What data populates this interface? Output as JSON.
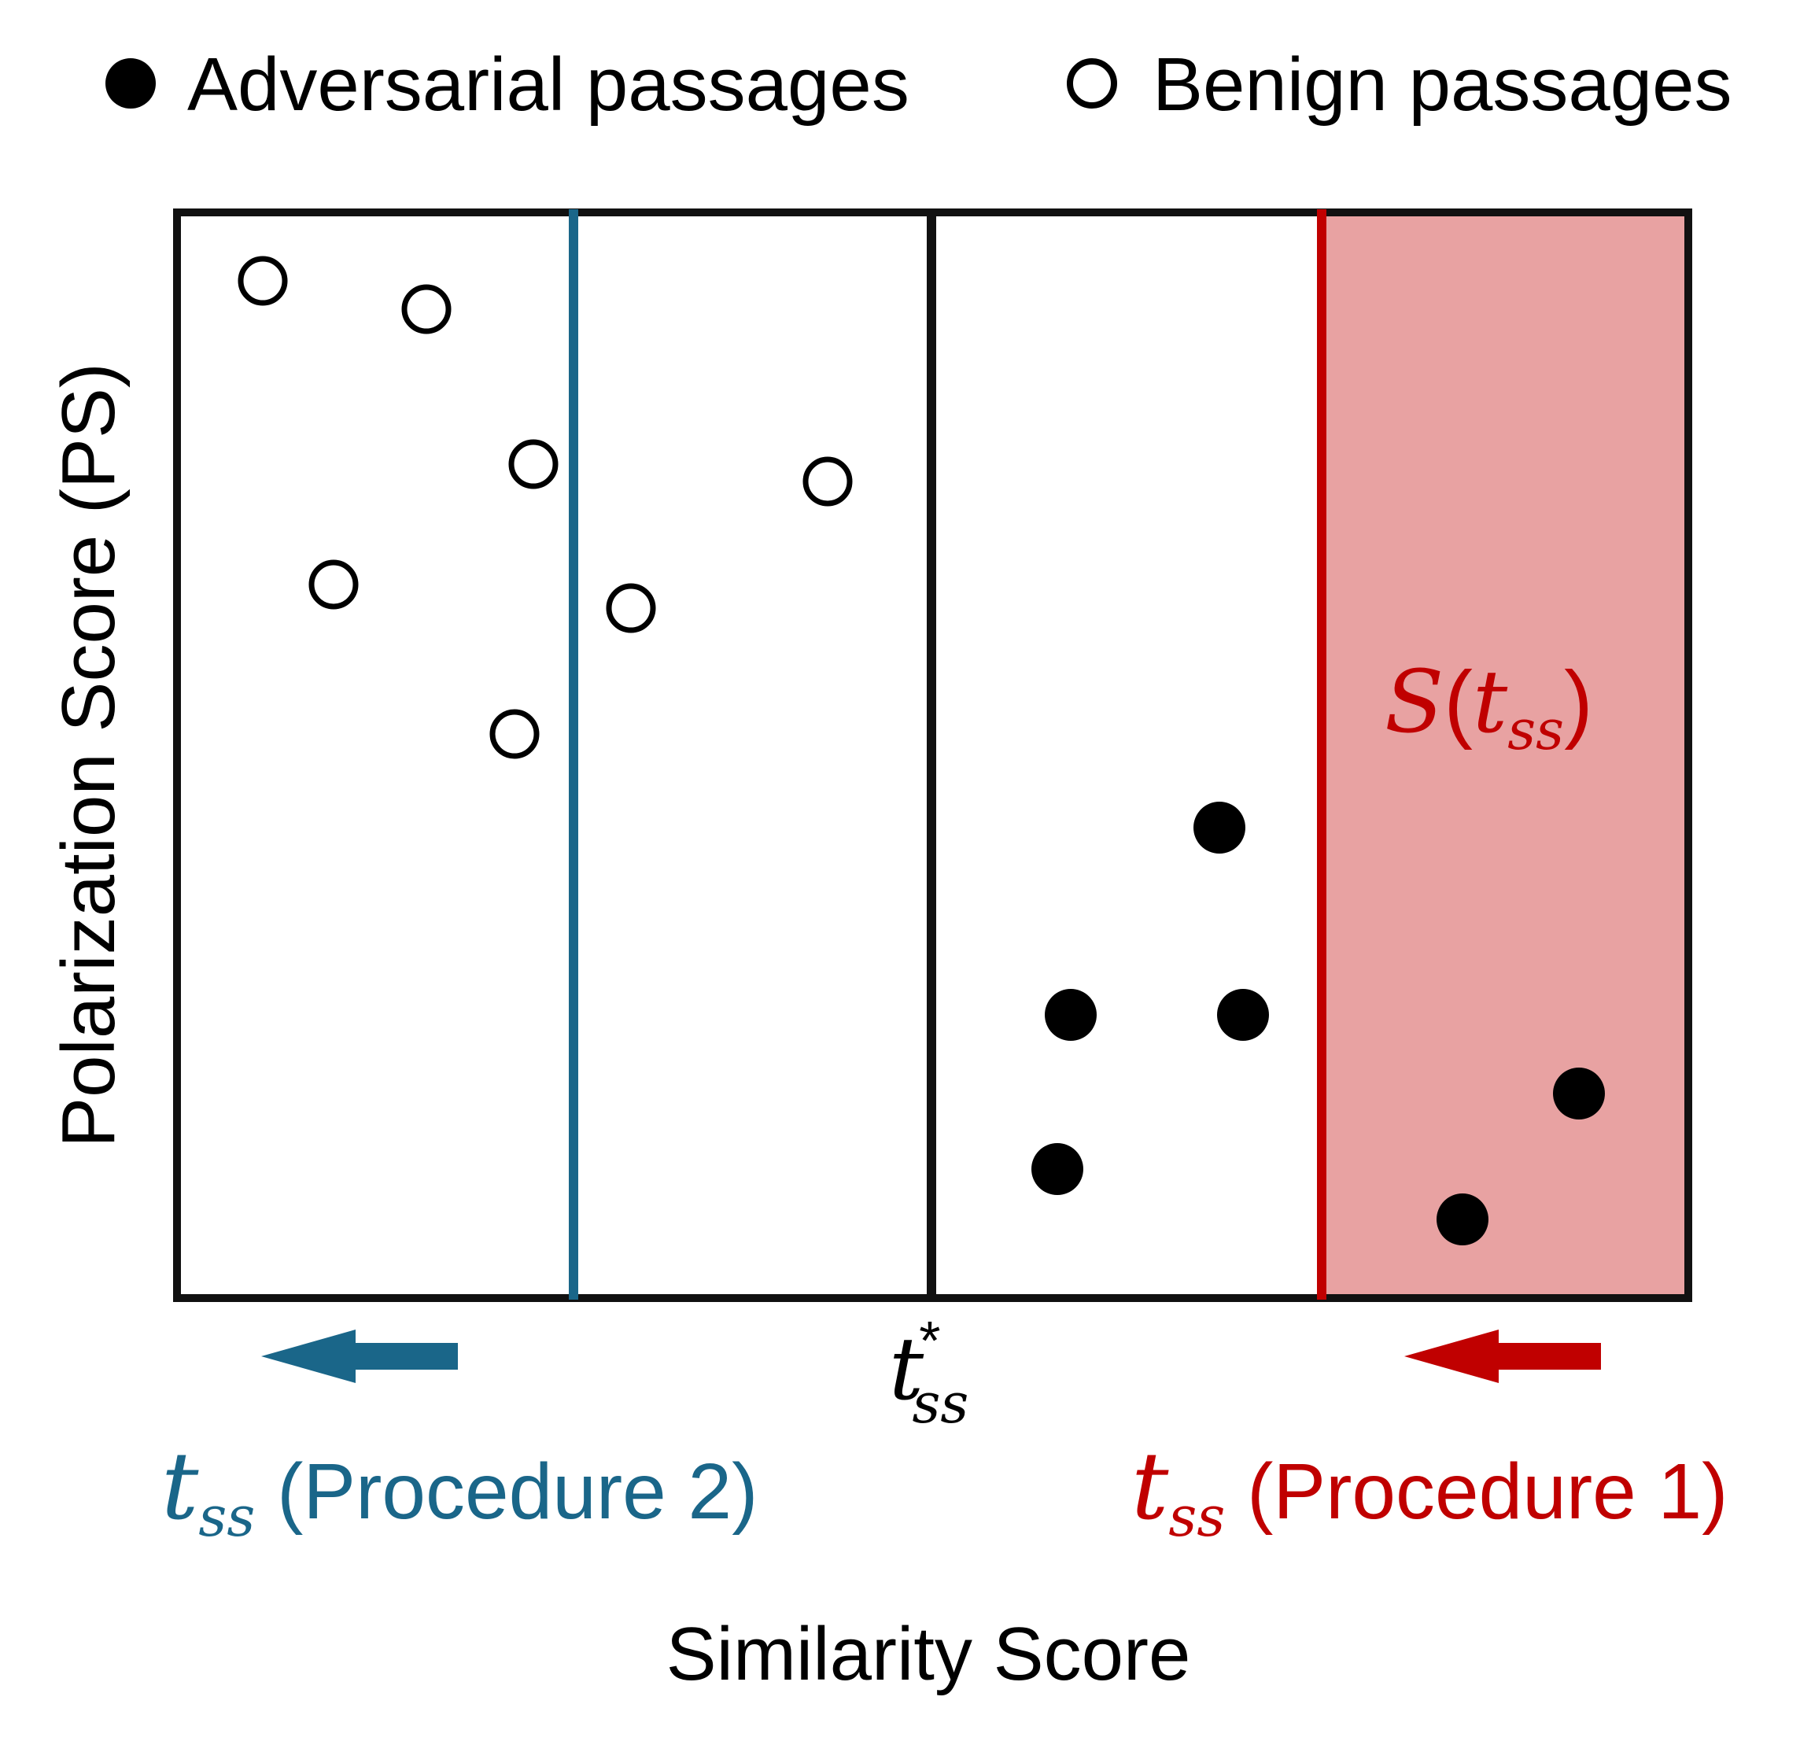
{
  "legend": {
    "adversarial_label": "Adversarial passages",
    "benign_label": "Benign passages",
    "adversarial_marker": "filled-circle-icon",
    "benign_marker": "hollow-circle-icon"
  },
  "axes": {
    "ylabel": "Polarization Score (PS)",
    "xlabel": "Similarity Score"
  },
  "thresholds": {
    "optimal": {
      "symbol": "t",
      "subscript": "ss",
      "superscript": "*"
    },
    "procedure2": {
      "symbol": "t",
      "subscript": "ss",
      "suffix": " (Procedure 2)",
      "color": "#1a6689"
    },
    "procedure1": {
      "symbol": "t",
      "subscript": "ss",
      "suffix": " (Procedure 1)",
      "color": "#c00000"
    }
  },
  "region": {
    "label_func": "S",
    "label_open": "(",
    "label_symbol": "t",
    "label_subscript": "ss",
    "label_close": ")",
    "fill": "#e8a2a2",
    "label_color": "#c00000"
  },
  "colors": {
    "frame": "#111111",
    "procedure2": "#1a6689",
    "procedure1": "#c00000",
    "region_fill": "#e8a2a2"
  }
}
